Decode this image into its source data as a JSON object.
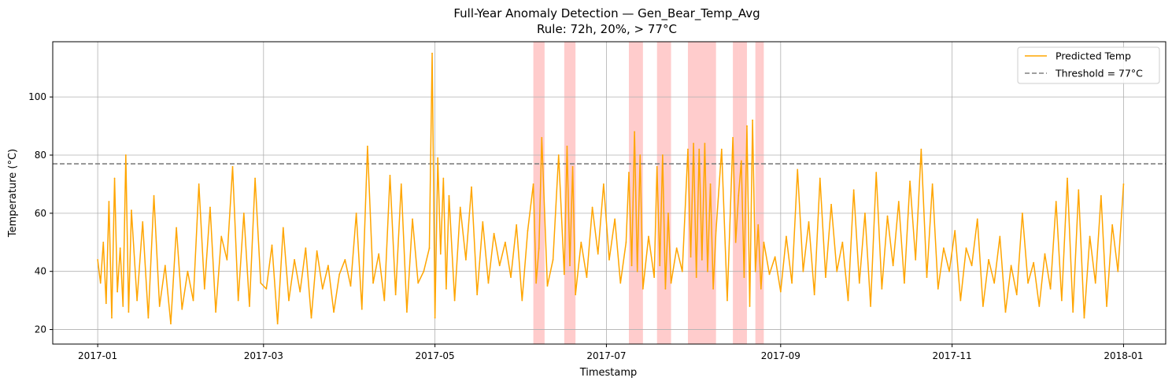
{
  "chart_data": {
    "type": "line",
    "title": "Full-Year Anomaly Detection — Gen_Bear_Temp_Avg",
    "subtitle": "Rule: 72h, 20%, > 77°C",
    "xlabel": "Timestamp",
    "ylabel": "Temperature (°C)",
    "xlim": [
      "2016-12-16",
      "2018-01-16"
    ],
    "ylim": [
      15,
      119
    ],
    "x_ticks": [
      "2017-01",
      "2017-03",
      "2017-05",
      "2017-07",
      "2017-09",
      "2017-11",
      "2018-01"
    ],
    "y_ticks": [
      20,
      40,
      60,
      80,
      100
    ],
    "grid": true,
    "legend_position": "top-right",
    "threshold": {
      "name": "Threshold = 77°C",
      "value": 77,
      "color": "#808080"
    },
    "anomaly_color": "#ff9999",
    "anomaly_windows": [
      [
        "2017-06-05",
        "2017-06-09"
      ],
      [
        "2017-06-16",
        "2017-06-20"
      ],
      [
        "2017-07-09",
        "2017-07-14"
      ],
      [
        "2017-07-19",
        "2017-07-24"
      ],
      [
        "2017-07-30",
        "2017-08-09"
      ],
      [
        "2017-08-15",
        "2017-08-17"
      ],
      [
        "2017-08-17",
        "2017-08-20"
      ],
      [
        "2017-08-23",
        "2017-08-25"
      ],
      [
        "2017-08-25",
        "2017-08-26"
      ]
    ],
    "series": [
      {
        "name": "Predicted Temp",
        "color": "#ffa500",
        "x": [
          "2017-01-01",
          "2017-01-02",
          "2017-01-03",
          "2017-01-04",
          "2017-01-05",
          "2017-01-06",
          "2017-01-07",
          "2017-01-08",
          "2017-01-09",
          "2017-01-10",
          "2017-01-11",
          "2017-01-12",
          "2017-01-13",
          "2017-01-15",
          "2017-01-17",
          "2017-01-19",
          "2017-01-21",
          "2017-01-23",
          "2017-01-25",
          "2017-01-27",
          "2017-01-29",
          "2017-01-31",
          "2017-02-02",
          "2017-02-04",
          "2017-02-06",
          "2017-02-08",
          "2017-02-10",
          "2017-02-12",
          "2017-02-14",
          "2017-02-16",
          "2017-02-18",
          "2017-02-20",
          "2017-02-22",
          "2017-02-24",
          "2017-02-26",
          "2017-02-28",
          "2017-03-02",
          "2017-03-04",
          "2017-03-06",
          "2017-03-08",
          "2017-03-10",
          "2017-03-12",
          "2017-03-14",
          "2017-03-16",
          "2017-03-18",
          "2017-03-20",
          "2017-03-22",
          "2017-03-24",
          "2017-03-26",
          "2017-03-28",
          "2017-03-30",
          "2017-04-01",
          "2017-04-03",
          "2017-04-05",
          "2017-04-07",
          "2017-04-09",
          "2017-04-11",
          "2017-04-13",
          "2017-04-15",
          "2017-04-17",
          "2017-04-19",
          "2017-04-21",
          "2017-04-23",
          "2017-04-25",
          "2017-04-27",
          "2017-04-29",
          "2017-04-30",
          "2017-05-01",
          "2017-05-02",
          "2017-05-03",
          "2017-05-04",
          "2017-05-05",
          "2017-05-06",
          "2017-05-08",
          "2017-05-10",
          "2017-05-12",
          "2017-05-14",
          "2017-05-16",
          "2017-05-18",
          "2017-05-20",
          "2017-05-22",
          "2017-05-24",
          "2017-05-26",
          "2017-05-28",
          "2017-05-30",
          "2017-06-01",
          "2017-06-03",
          "2017-06-05",
          "2017-06-06",
          "2017-06-07",
          "2017-06-08",
          "2017-06-10",
          "2017-06-12",
          "2017-06-14",
          "2017-06-16",
          "2017-06-17",
          "2017-06-18",
          "2017-06-19",
          "2017-06-20",
          "2017-06-22",
          "2017-06-24",
          "2017-06-26",
          "2017-06-28",
          "2017-06-30",
          "2017-07-02",
          "2017-07-04",
          "2017-07-06",
          "2017-07-08",
          "2017-07-09",
          "2017-07-10",
          "2017-07-11",
          "2017-07-12",
          "2017-07-13",
          "2017-07-14",
          "2017-07-16",
          "2017-07-18",
          "2017-07-19",
          "2017-07-20",
          "2017-07-21",
          "2017-07-22",
          "2017-07-23",
          "2017-07-24",
          "2017-07-26",
          "2017-07-28",
          "2017-07-30",
          "2017-07-31",
          "2017-08-01",
          "2017-08-02",
          "2017-08-03",
          "2017-08-04",
          "2017-08-05",
          "2017-08-06",
          "2017-08-07",
          "2017-08-08",
          "2017-08-09",
          "2017-08-11",
          "2017-08-13",
          "2017-08-15",
          "2017-08-16",
          "2017-08-17",
          "2017-08-18",
          "2017-08-19",
          "2017-08-20",
          "2017-08-21",
          "2017-08-22",
          "2017-08-23",
          "2017-08-24",
          "2017-08-25",
          "2017-08-26",
          "2017-08-28",
          "2017-08-30",
          "2017-09-01",
          "2017-09-03",
          "2017-09-05",
          "2017-09-07",
          "2017-09-09",
          "2017-09-11",
          "2017-09-13",
          "2017-09-15",
          "2017-09-17",
          "2017-09-19",
          "2017-09-21",
          "2017-09-23",
          "2017-09-25",
          "2017-09-27",
          "2017-09-29",
          "2017-10-01",
          "2017-10-03",
          "2017-10-05",
          "2017-10-07",
          "2017-10-09",
          "2017-10-11",
          "2017-10-13",
          "2017-10-15",
          "2017-10-17",
          "2017-10-19",
          "2017-10-21",
          "2017-10-23",
          "2017-10-25",
          "2017-10-27",
          "2017-10-29",
          "2017-10-31",
          "2017-11-02",
          "2017-11-04",
          "2017-11-06",
          "2017-11-08",
          "2017-11-10",
          "2017-11-12",
          "2017-11-14",
          "2017-11-16",
          "2017-11-18",
          "2017-11-20",
          "2017-11-22",
          "2017-11-24",
          "2017-11-26",
          "2017-11-28",
          "2017-11-30",
          "2017-12-02",
          "2017-12-04",
          "2017-12-06",
          "2017-12-08",
          "2017-12-10",
          "2017-12-12",
          "2017-12-14",
          "2017-12-16",
          "2017-12-18",
          "2017-12-20",
          "2017-12-22",
          "2017-12-24",
          "2017-12-26",
          "2017-12-28",
          "2017-12-30",
          "2018-01-01"
        ],
        "y": [
          44,
          36,
          50,
          29,
          64,
          24,
          72,
          33,
          48,
          28,
          80,
          26,
          61,
          30,
          57,
          24,
          66,
          28,
          42,
          22,
          55,
          27,
          40,
          30,
          70,
          34,
          62,
          26,
          52,
          44,
          76,
          30,
          60,
          28,
          72,
          36,
          34,
          49,
          22,
          55,
          30,
          44,
          33,
          48,
          24,
          47,
          34,
          42,
          26,
          39,
          44,
          35,
          60,
          27,
          83,
          36,
          46,
          30,
          73,
          32,
          70,
          26,
          58,
          36,
          40,
          48,
          115,
          24,
          79,
          46,
          72,
          34,
          66,
          30,
          62,
          44,
          69,
          32,
          57,
          36,
          53,
          42,
          50,
          38,
          56,
          30,
          54,
          70,
          36,
          48,
          86,
          35,
          44,
          80,
          39,
          83,
          42,
          76,
          32,
          50,
          38,
          62,
          46,
          70,
          44,
          58,
          36,
          50,
          74,
          42,
          88,
          40,
          80,
          34,
          52,
          38,
          76,
          42,
          80,
          34,
          60,
          36,
          48,
          40,
          82,
          45,
          84,
          38,
          82,
          44,
          84,
          40,
          70,
          34,
          54,
          82,
          30,
          86,
          50,
          66,
          78,
          38,
          90,
          28,
          92,
          40,
          56,
          34,
          50,
          39,
          45,
          33,
          52,
          36,
          75,
          40,
          57,
          32,
          72,
          38,
          63,
          40,
          50,
          30,
          68,
          36,
          60,
          28,
          74,
          34,
          59,
          42,
          64,
          36,
          71,
          44,
          82,
          38,
          70,
          34,
          48,
          40,
          54,
          30,
          48,
          42,
          58,
          28,
          44,
          36,
          52,
          26,
          42,
          32,
          60,
          36,
          43,
          28,
          46,
          34,
          64,
          30,
          72,
          26,
          68,
          24,
          52,
          36,
          66,
          28,
          56,
          40,
          70
        ]
      }
    ]
  },
  "legend": {
    "items": [
      "Predicted Temp",
      "Threshold = 77°C"
    ]
  }
}
